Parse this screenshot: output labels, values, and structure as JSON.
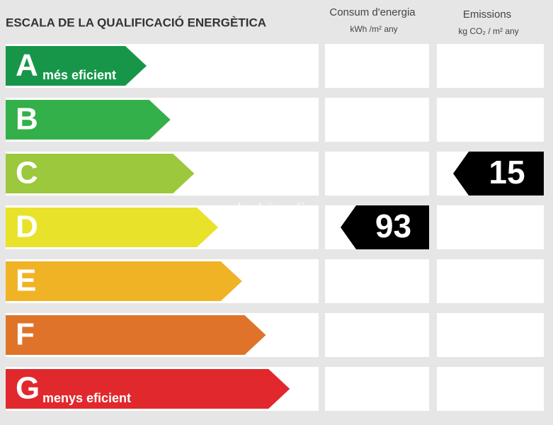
{
  "header": {
    "title": "ESCALA DE LA QUALIFICACIÓ ENERGÈTICA",
    "columns": [
      {
        "title": "Consum d'energia",
        "unit": "kWh /m² any"
      },
      {
        "title": "Emissions",
        "unit": "kg CO₂ / m² any"
      }
    ]
  },
  "watermark": "habitaclia",
  "rows": [
    {
      "letter": "A",
      "label": "més eficient",
      "color": "#17964a"
    },
    {
      "letter": "B",
      "color": "#34b04a"
    },
    {
      "letter": "C",
      "color": "#9bc83c",
      "emissions": 15
    },
    {
      "letter": "D",
      "color": "#e9e22a",
      "consumption": 93
    },
    {
      "letter": "E",
      "color": "#efb325"
    },
    {
      "letter": "F",
      "color": "#df7329"
    },
    {
      "letter": "G",
      "label": "menys eficient",
      "color": "#e1282d"
    }
  ]
}
